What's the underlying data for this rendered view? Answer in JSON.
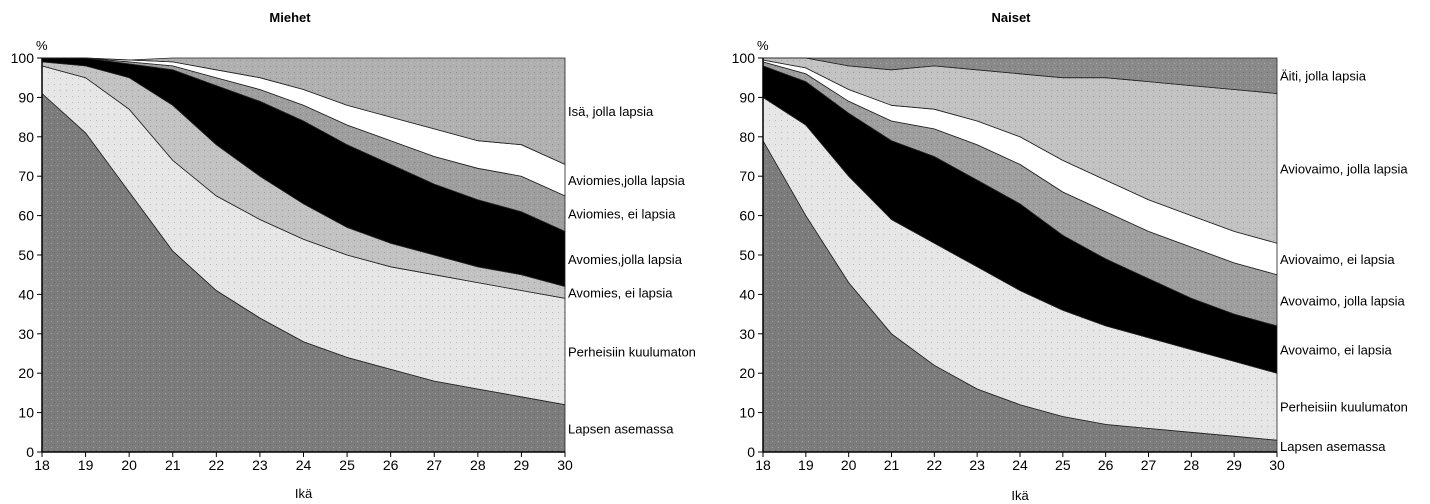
{
  "chart_data": [
    {
      "type": "area",
      "stacked": true,
      "title": "Miehet",
      "xlabel": "Ikä",
      "ylabel": "%",
      "xlim": [
        18,
        30
      ],
      "ylim": [
        0,
        100
      ],
      "x": [
        18,
        19,
        20,
        21,
        22,
        23,
        24,
        25,
        26,
        27,
        28,
        29,
        30
      ],
      "x_ticks": [
        "18",
        "19",
        "20",
        "21",
        "22",
        "23",
        "24",
        "25",
        "26",
        "27",
        "28",
        "29",
        "30"
      ],
      "y_ticks": [
        "0",
        "10",
        "20",
        "30",
        "40",
        "50",
        "60",
        "70",
        "80",
        "90",
        "100"
      ],
      "legend_placement": "right, labels beside bands",
      "series": [
        {
          "name": "Lapsen asemassa",
          "color": "#7c7c7c",
          "values": [
            91,
            81,
            66,
            51,
            41,
            34,
            28,
            24,
            21,
            18,
            16,
            14,
            12
          ]
        },
        {
          "name": "Perheisiin kuulumaton",
          "color": "#e6e6e6",
          "values": [
            7,
            14,
            21,
            23,
            24,
            25,
            26,
            26,
            26,
            27,
            27,
            27,
            27
          ]
        },
        {
          "name": "Avomies, ei lapsia",
          "color": "#c2c2c2",
          "values": [
            1,
            3,
            8,
            14,
            13,
            11,
            9,
            7,
            6,
            5,
            4,
            4,
            3
          ]
        },
        {
          "name": "Avomies,jolla lapsia",
          "color": "#000000",
          "values": [
            1,
            2,
            3.5,
            9,
            15,
            19,
            21,
            21,
            20,
            18,
            17,
            16,
            14
          ]
        },
        {
          "name": "Aviomies, ei lapsia",
          "color": "#9e9e9e",
          "values": [
            0,
            0,
            0.5,
            1,
            2,
            3,
            4,
            5,
            6,
            7,
            8,
            9,
            9
          ]
        },
        {
          "name": "Aviomies,jolla lapsia",
          "color": "#ffffff",
          "values": [
            0,
            0,
            0.5,
            1,
            2,
            3,
            4,
            5,
            6,
            7,
            7,
            8,
            8
          ]
        },
        {
          "name": "Isä, jolla lapsia",
          "color": "#b0b0b0",
          "values": [
            0,
            0,
            0,
            1,
            3,
            5,
            8,
            12,
            15,
            18,
            21,
            22,
            27
          ]
        }
      ]
    },
    {
      "type": "area",
      "stacked": true,
      "title": "Naiset",
      "xlabel": "Ikä",
      "ylabel": "%",
      "xlim": [
        18,
        30
      ],
      "ylim": [
        0,
        100
      ],
      "x": [
        18,
        19,
        20,
        21,
        22,
        23,
        24,
        25,
        26,
        27,
        28,
        29,
        30
      ],
      "x_ticks": [
        "18",
        "19",
        "20",
        "21",
        "22",
        "23",
        "24",
        "25",
        "26",
        "27",
        "28",
        "29",
        "30"
      ],
      "y_ticks": [
        "0",
        "10",
        "20",
        "30",
        "40",
        "50",
        "60",
        "70",
        "80",
        "90",
        "100"
      ],
      "legend_placement": "right, labels beside bands",
      "series": [
        {
          "name": "Lapsen asemassa",
          "color": "#7c7c7c",
          "values": [
            79,
            60,
            43,
            30,
            22,
            16,
            12,
            9,
            7,
            6,
            5,
            4,
            3
          ]
        },
        {
          "name": "Perheisiin kuulumaton",
          "color": "#e6e6e6",
          "values": [
            11,
            23,
            27,
            29,
            31,
            31,
            29,
            27,
            25,
            23,
            21,
            19,
            17
          ]
        },
        {
          "name": "Avovaimo, ei lapsia",
          "color": "#000000",
          "values": [
            8,
            11,
            16,
            20,
            22,
            22,
            22,
            19,
            17,
            15,
            13,
            12,
            12
          ]
        },
        {
          "name": "Avovaimo, jolla lapsia",
          "color": "#9e9e9e",
          "values": [
            1,
            2,
            3,
            5,
            7,
            9,
            10,
            11,
            12,
            12,
            13,
            13,
            13
          ]
        },
        {
          "name": "Aviovaimo, ei lapsia",
          "color": "#ffffff",
          "values": [
            0.5,
            1.5,
            3,
            4,
            5,
            6,
            7,
            8,
            8,
            8,
            8,
            8,
            8
          ]
        },
        {
          "name": "Aviovaimo, jolla lapsia",
          "color": "#c2c2c2",
          "values": [
            0.5,
            2.5,
            6,
            9,
            11,
            13,
            16,
            21,
            26,
            30,
            33,
            36,
            38
          ]
        },
        {
          "name": "Äiti, jolla lapsia",
          "color": "#8a8a8a",
          "values": [
            0,
            0,
            2,
            3,
            2,
            3,
            4,
            5,
            5,
            6,
            7,
            8,
            9
          ]
        }
      ]
    }
  ]
}
